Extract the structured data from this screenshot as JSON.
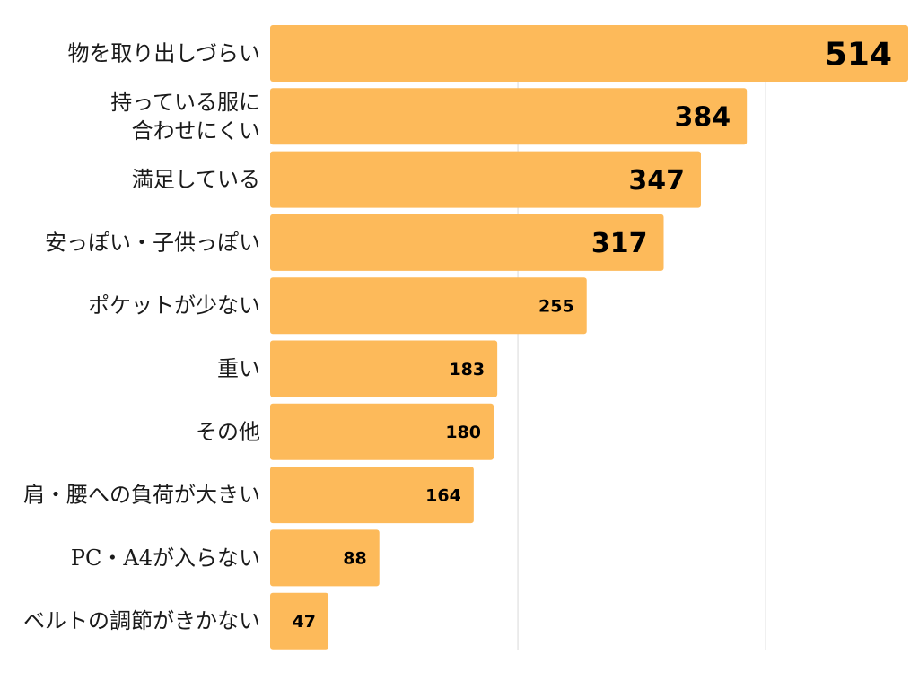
{
  "chart_data": {
    "type": "bar",
    "orientation": "horizontal",
    "categories": [
      "物を取り出しづらい",
      "持っている服に\n合わせにくい",
      "満足している",
      "安っぽい・子供っぽい",
      "ポケットが少ない",
      "重い",
      "その他",
      "肩・腰への負荷が大きい",
      "PC・A4が入らない",
      "ベルトの調節がきかない"
    ],
    "values": [
      514,
      384,
      347,
      317,
      255,
      183,
      180,
      164,
      88,
      47
    ],
    "title": "",
    "xlabel": "",
    "ylabel": "",
    "xlim": [
      0,
      514
    ],
    "grid": true,
    "legend": "none",
    "colors": {
      "bar": "#FDBA5A",
      "grid": "#e6e6e6",
      "text": "#1a1a1a",
      "value_text": "#000000"
    }
  }
}
